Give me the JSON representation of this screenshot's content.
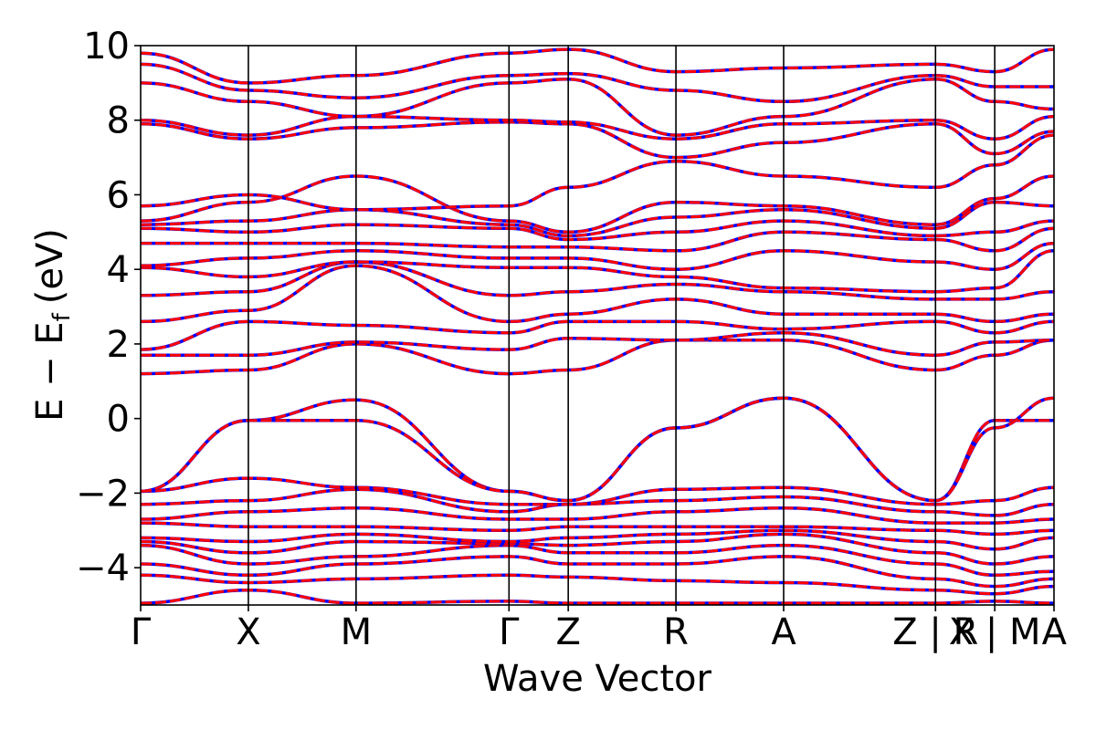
{
  "chart_data": {
    "type": "line",
    "title": "",
    "xlabel": "Wave Vector",
    "ylabel": "E − E",
    "ylabel_subscript": "f",
    "ylabel_unit": "(eV)",
    "ylim": [
      -5,
      10
    ],
    "yticks": [
      -4,
      -2,
      0,
      2,
      4,
      6,
      8,
      10
    ],
    "ytick_labels": [
      "−4",
      "−2",
      "0",
      "2",
      "4",
      "6",
      "8",
      "10"
    ],
    "kpath_positions": [
      0,
      1,
      2,
      3.42,
      3.97,
      4.97,
      5.97,
      7.38,
      7.93,
      8.48
    ],
    "xtick_labels": [
      "Γ",
      "X",
      "M",
      "Γ",
      "Z",
      "R",
      "A",
      "Z | R",
      "X | M",
      "A"
    ],
    "segment_breaks": [
      7.38,
      7.93
    ],
    "grid": false,
    "legend": "none",
    "colors": {
      "solid_line": "#ff0000",
      "dashed_line": "#0000ff",
      "axes": "#000000"
    },
    "series": [
      {
        "values_at_kpoints": [
          -4.95,
          -4.6,
          -4.95,
          -4.9,
          -4.95,
          -4.95,
          -4.95,
          -4.95,
          -4.9,
          -4.95
        ]
      },
      {
        "values_at_kpoints": [
          -4.2,
          -4.4,
          -4.3,
          -4.2,
          -4.25,
          -4.35,
          -4.4,
          -4.6,
          -4.7,
          -4.5
        ]
      },
      {
        "values_at_kpoints": [
          -3.9,
          -4.2,
          -3.9,
          -3.7,
          -3.9,
          -3.9,
          -3.7,
          -4.3,
          -4.5,
          -4.3
        ]
      },
      {
        "values_at_kpoints": [
          -3.4,
          -3.9,
          -3.7,
          -3.4,
          -3.6,
          -3.6,
          -3.4,
          -3.9,
          -4.2,
          -4.1
        ]
      },
      {
        "values_at_kpoints": [
          -3.3,
          -3.6,
          -3.3,
          -3.35,
          -3.4,
          -3.3,
          -3.1,
          -3.6,
          -3.9,
          -3.7
        ]
      },
      {
        "values_at_kpoints": [
          -3.2,
          -3.3,
          -3.1,
          -3.3,
          -3.2,
          -3.1,
          -3.0,
          -3.3,
          -3.5,
          -3.2
        ]
      },
      {
        "values_at_kpoints": [
          -2.8,
          -2.9,
          -2.9,
          -3.0,
          -2.9,
          -2.9,
          -2.9,
          -3.0,
          -3.1,
          -3.0
        ]
      },
      {
        "values_at_kpoints": [
          -2.7,
          -2.5,
          -2.4,
          -2.7,
          -2.7,
          -2.5,
          -2.4,
          -2.8,
          -2.8,
          -2.7
        ]
      },
      {
        "values_at_kpoints": [
          -2.3,
          -2.2,
          -1.9,
          -2.5,
          -2.3,
          -2.2,
          -2.1,
          -2.5,
          -2.6,
          -2.3
        ]
      },
      {
        "values_at_kpoints": [
          -1.95,
          -1.6,
          -1.85,
          -2.3,
          -2.3,
          -1.9,
          -1.85,
          -2.3,
          -2.2,
          -1.85
        ]
      },
      {
        "values_at_kpoints": [
          -1.95,
          -0.05,
          0.5,
          -1.95,
          -2.2,
          -0.25,
          0.55,
          -2.2,
          -0.05,
          -0.05
        ]
      },
      {
        "values_at_kpoints": [
          -1.95,
          -0.05,
          -0.05,
          -1.95,
          -2.2,
          -0.25,
          0.55,
          -2.2,
          -0.25,
          0.55
        ]
      },
      {
        "values_at_kpoints": [
          1.2,
          1.3,
          2.0,
          1.2,
          1.3,
          2.1,
          2.1,
          1.3,
          1.7,
          2.1
        ]
      },
      {
        "values_at_kpoints": [
          1.7,
          1.7,
          2.05,
          1.85,
          2.15,
          2.1,
          2.3,
          1.7,
          2.05,
          2.1
        ]
      },
      {
        "values_at_kpoints": [
          1.85,
          2.6,
          2.5,
          2.3,
          2.6,
          2.6,
          2.4,
          2.6,
          2.3,
          2.6
        ]
      },
      {
        "values_at_kpoints": [
          2.6,
          2.9,
          4.1,
          2.6,
          2.8,
          3.2,
          2.8,
          2.8,
          2.6,
          2.8
        ]
      },
      {
        "values_at_kpoints": [
          3.3,
          3.4,
          4.2,
          3.3,
          3.4,
          3.6,
          3.4,
          3.2,
          3.2,
          3.4
        ]
      },
      {
        "values_at_kpoints": [
          4.05,
          3.8,
          4.2,
          4.05,
          4.05,
          3.8,
          3.5,
          3.4,
          3.5,
          4.5
        ]
      },
      {
        "values_at_kpoints": [
          4.1,
          4.3,
          4.5,
          4.3,
          4.3,
          4.0,
          4.5,
          4.2,
          4.0,
          4.7
        ]
      },
      {
        "values_at_kpoints": [
          4.7,
          4.7,
          4.7,
          4.6,
          4.6,
          4.5,
          5.0,
          4.8,
          4.5,
          5.1
        ]
      },
      {
        "values_at_kpoints": [
          5.1,
          5.0,
          5.2,
          5.1,
          4.8,
          5.0,
          5.3,
          4.9,
          5.0,
          5.3
        ]
      },
      {
        "values_at_kpoints": [
          5.2,
          5.3,
          5.6,
          5.2,
          4.9,
          5.4,
          5.6,
          5.1,
          5.8,
          5.7
        ]
      },
      {
        "values_at_kpoints": [
          5.3,
          5.8,
          6.5,
          5.3,
          5.0,
          5.8,
          5.7,
          5.2,
          5.9,
          6.5
        ]
      },
      {
        "values_at_kpoints": [
          5.7,
          6.0,
          5.6,
          5.7,
          6.2,
          6.9,
          6.5,
          6.2,
          6.8,
          7.6
        ]
      },
      {
        "values_at_kpoints": [
          7.9,
          7.5,
          7.8,
          7.95,
          7.9,
          7.0,
          7.4,
          7.9,
          7.1,
          7.7
        ]
      },
      {
        "values_at_kpoints": [
          8.0,
          7.6,
          8.1,
          8.0,
          7.95,
          7.5,
          7.9,
          8.0,
          7.5,
          8.1
        ]
      },
      {
        "values_at_kpoints": [
          9.0,
          8.5,
          8.1,
          9.0,
          9.1,
          7.6,
          8.1,
          9.1,
          8.5,
          8.3
        ]
      },
      {
        "values_at_kpoints": [
          9.5,
          8.8,
          8.6,
          9.2,
          9.25,
          8.8,
          8.5,
          9.2,
          8.9,
          8.9
        ]
      },
      {
        "values_at_kpoints": [
          9.8,
          9.0,
          9.2,
          9.8,
          9.9,
          9.3,
          9.4,
          9.5,
          9.3,
          9.9
        ]
      }
    ]
  }
}
